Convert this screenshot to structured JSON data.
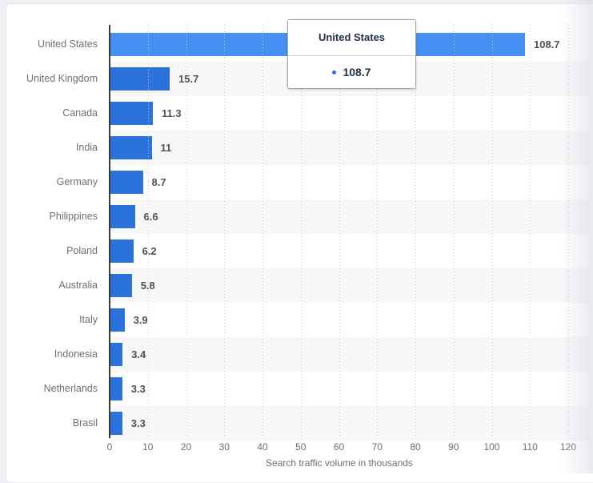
{
  "chart_data": {
    "type": "bar",
    "orientation": "horizontal",
    "categories": [
      "United States",
      "United Kingdom",
      "Canada",
      "India",
      "Germany",
      "Philippines",
      "Poland",
      "Australia",
      "Italy",
      "Indonesia",
      "Netherlands",
      "Brasil"
    ],
    "values": [
      108.7,
      15.7,
      11.3,
      11,
      8.7,
      6.6,
      6.2,
      5.8,
      3.9,
      3.4,
      3.3,
      3.3
    ],
    "value_labels": [
      "108.7",
      "15.7",
      "11.3",
      "11",
      "8.7",
      "6.6",
      "6.2",
      "5.8",
      "3.9",
      "3.4",
      "3.3",
      "3.3"
    ],
    "xlabel": "Search traffic volume in thousands",
    "xlim": [
      0,
      120
    ],
    "x_ticks": [
      0,
      10,
      20,
      30,
      40,
      50,
      60,
      70,
      80,
      90,
      100,
      110,
      120
    ],
    "grid": "vertical-dotted",
    "legend": "none",
    "bar_color": "#2b72da",
    "bar_hover_color": "#4690f3",
    "highlighted_index": 0,
    "stripe_color": "#f7f7f8",
    "axis_line_color": "#3b3b3b"
  },
  "tooltip": {
    "title": "United States",
    "value": "108.7",
    "marker_color": "#2f6fdb"
  }
}
